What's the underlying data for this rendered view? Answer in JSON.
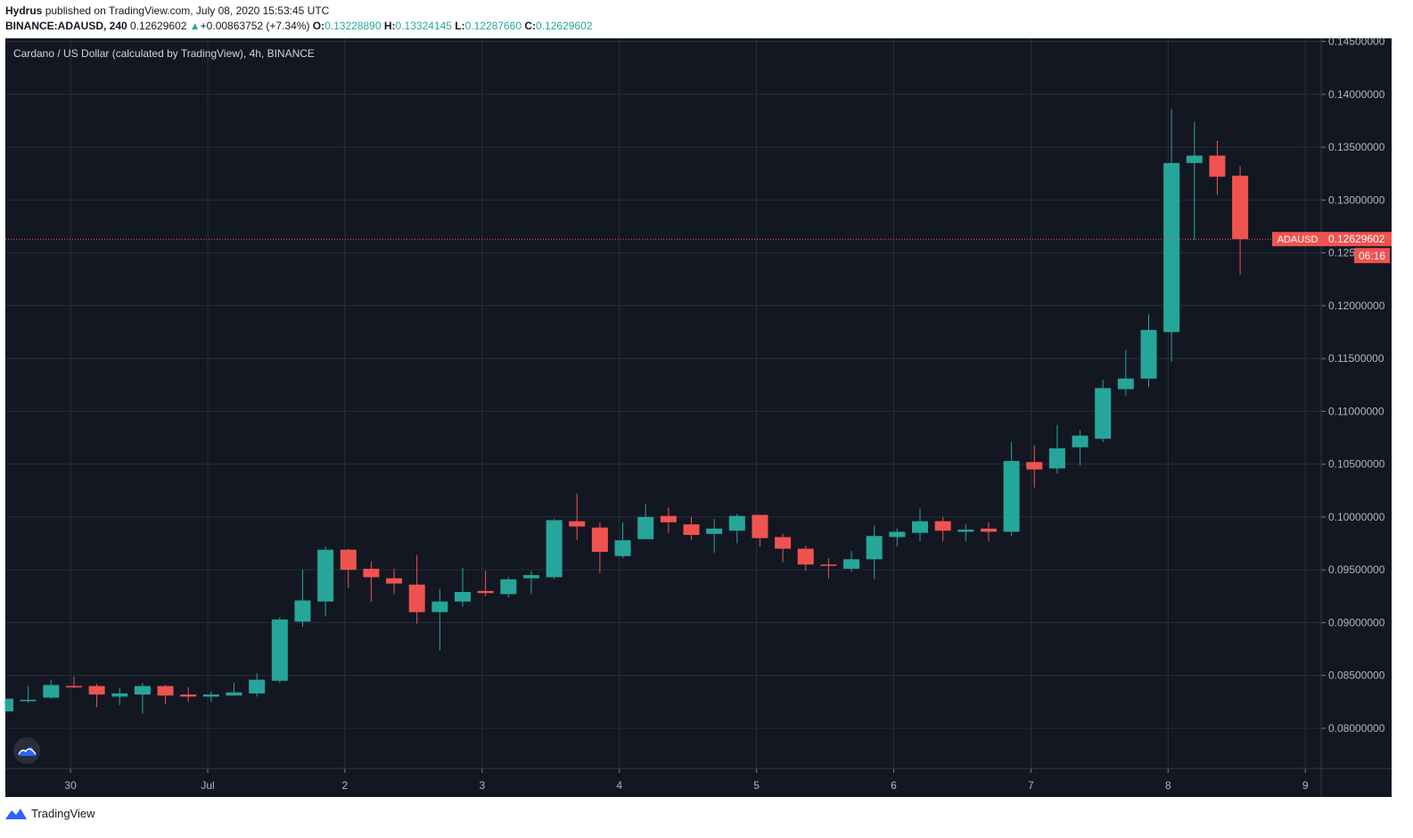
{
  "header": {
    "author": "Hydrus",
    "published_text": "published on TradingView.com, July 08, 2020 15:53:45 UTC",
    "symbol_line": "BINANCE:ADAUSD, 240",
    "last_price": "0.12629602",
    "change_arrow": "▲",
    "change": "+0.00863752 (+7.34%)",
    "o_label": "O:",
    "o_value": "0.13228890",
    "h_label": "H:",
    "h_value": "0.13324145",
    "l_label": "L:",
    "l_value": "0.12287660",
    "c_label": "C:",
    "c_value": "0.12629602"
  },
  "footer": {
    "brand": "TradingView",
    "icon": "tradingview-logo-icon"
  },
  "chart_data": {
    "type": "candlestick",
    "title": "Cardano / US Dollar (calculated by TradingView), 4h, BINANCE",
    "x_tick_labels": [
      "30",
      "Jul",
      "2",
      "3",
      "4",
      "5",
      "6",
      "7",
      "8",
      "9"
    ],
    "y_tick_labels": [
      "0.08000000",
      "0.08500000",
      "0.09000000",
      "0.09500000",
      "0.10000000",
      "0.10500000",
      "0.11000000",
      "0.11500000",
      "0.12000000",
      "0.12500000",
      "0.13000000",
      "0.13500000",
      "0.14000000",
      "0.14500000"
    ],
    "ylim": [
      0.0762,
      0.1453
    ],
    "grid": true,
    "colors": {
      "background": "#131722",
      "up": "#26a69a",
      "down": "#ef5350",
      "grid": "#2a2e39",
      "axis_text": "#b2b5be",
      "price_line": "#ef5350"
    },
    "candles": [
      {
        "o": 0.0816,
        "h": 0.0828,
        "l": 0.0816,
        "c": 0.0828
      },
      {
        "o": 0.0826,
        "h": 0.084,
        "l": 0.0824,
        "c": 0.0827
      },
      {
        "o": 0.0829,
        "h": 0.0846,
        "l": 0.0828,
        "c": 0.0841
      },
      {
        "o": 0.084,
        "h": 0.0849,
        "l": 0.0838,
        "c": 0.0839
      },
      {
        "o": 0.084,
        "h": 0.0842,
        "l": 0.082,
        "c": 0.0832
      },
      {
        "o": 0.083,
        "h": 0.0838,
        "l": 0.0822,
        "c": 0.0833
      },
      {
        "o": 0.0832,
        "h": 0.0843,
        "l": 0.0814,
        "c": 0.084
      },
      {
        "o": 0.084,
        "h": 0.0841,
        "l": 0.0823,
        "c": 0.0831
      },
      {
        "o": 0.0832,
        "h": 0.0839,
        "l": 0.0825,
        "c": 0.083
      },
      {
        "o": 0.083,
        "h": 0.0835,
        "l": 0.0825,
        "c": 0.0832
      },
      {
        "o": 0.0831,
        "h": 0.0843,
        "l": 0.0831,
        "c": 0.0834
      },
      {
        "o": 0.0833,
        "h": 0.0852,
        "l": 0.083,
        "c": 0.0846
      },
      {
        "o": 0.0845,
        "h": 0.0905,
        "l": 0.0843,
        "c": 0.0903
      },
      {
        "o": 0.0901,
        "h": 0.095,
        "l": 0.0896,
        "c": 0.0921
      },
      {
        "o": 0.092,
        "h": 0.0972,
        "l": 0.0906,
        "c": 0.0969
      },
      {
        "o": 0.0969,
        "h": 0.097,
        "l": 0.0933,
        "c": 0.095
      },
      {
        "o": 0.0951,
        "h": 0.0958,
        "l": 0.092,
        "c": 0.0943
      },
      {
        "o": 0.0942,
        "h": 0.0951,
        "l": 0.0927,
        "c": 0.0937
      },
      {
        "o": 0.0936,
        "h": 0.0964,
        "l": 0.0899,
        "c": 0.091
      },
      {
        "o": 0.091,
        "h": 0.0932,
        "l": 0.0874,
        "c": 0.092
      },
      {
        "o": 0.092,
        "h": 0.0952,
        "l": 0.0915,
        "c": 0.0929
      },
      {
        "o": 0.093,
        "h": 0.0949,
        "l": 0.0925,
        "c": 0.0928
      },
      {
        "o": 0.0927,
        "h": 0.0943,
        "l": 0.0924,
        "c": 0.0941
      },
      {
        "o": 0.0942,
        "h": 0.0949,
        "l": 0.0927,
        "c": 0.0945
      },
      {
        "o": 0.0943,
        "h": 0.0998,
        "l": 0.0941,
        "c": 0.0997
      },
      {
        "o": 0.0996,
        "h": 0.1022,
        "l": 0.0978,
        "c": 0.0991
      },
      {
        "o": 0.099,
        "h": 0.0995,
        "l": 0.0947,
        "c": 0.0967
      },
      {
        "o": 0.0963,
        "h": 0.0995,
        "l": 0.0961,
        "c": 0.0978
      },
      {
        "o": 0.0979,
        "h": 0.1012,
        "l": 0.0979,
        "c": 0.1
      },
      {
        "o": 0.1001,
        "h": 0.1009,
        "l": 0.0985,
        "c": 0.0995
      },
      {
        "o": 0.0993,
        "h": 0.1,
        "l": 0.0978,
        "c": 0.0983
      },
      {
        "o": 0.0984,
        "h": 0.0998,
        "l": 0.0966,
        "c": 0.0989
      },
      {
        "o": 0.0987,
        "h": 0.1003,
        "l": 0.0975,
        "c": 0.1001
      },
      {
        "o": 0.1002,
        "h": 0.1002,
        "l": 0.0972,
        "c": 0.098
      },
      {
        "o": 0.0981,
        "h": 0.0984,
        "l": 0.0957,
        "c": 0.097
      },
      {
        "o": 0.097,
        "h": 0.0973,
        "l": 0.0949,
        "c": 0.0955
      },
      {
        "o": 0.0955,
        "h": 0.0961,
        "l": 0.0942,
        "c": 0.0954
      },
      {
        "o": 0.0951,
        "h": 0.0968,
        "l": 0.0948,
        "c": 0.096
      },
      {
        "o": 0.096,
        "h": 0.0992,
        "l": 0.0941,
        "c": 0.0982
      },
      {
        "o": 0.0981,
        "h": 0.0989,
        "l": 0.0972,
        "c": 0.0986
      },
      {
        "o": 0.0985,
        "h": 0.1008,
        "l": 0.0977,
        "c": 0.0996
      },
      {
        "o": 0.0996,
        "h": 0.1,
        "l": 0.0977,
        "c": 0.0987
      },
      {
        "o": 0.0986,
        "h": 0.0993,
        "l": 0.0977,
        "c": 0.0988
      },
      {
        "o": 0.0989,
        "h": 0.0995,
        "l": 0.0977,
        "c": 0.0986
      },
      {
        "o": 0.0986,
        "h": 0.1071,
        "l": 0.0982,
        "c": 0.1053
      },
      {
        "o": 0.1052,
        "h": 0.1068,
        "l": 0.1028,
        "c": 0.1045
      },
      {
        "o": 0.1046,
        "h": 0.1087,
        "l": 0.1041,
        "c": 0.1065
      },
      {
        "o": 0.1066,
        "h": 0.1082,
        "l": 0.1049,
        "c": 0.1077
      },
      {
        "o": 0.1074,
        "h": 0.113,
        "l": 0.1071,
        "c": 0.1122
      },
      {
        "o": 0.1121,
        "h": 0.1158,
        "l": 0.1115,
        "c": 0.1131
      },
      {
        "o": 0.1131,
        "h": 0.1192,
        "l": 0.1123,
        "c": 0.1177
      },
      {
        "o": 0.1175,
        "h": 0.1386,
        "l": 0.1147,
        "c": 0.1335
      },
      {
        "o": 0.1335,
        "h": 0.1374,
        "l": 0.1262,
        "c": 0.1342
      },
      {
        "o": 0.1342,
        "h": 0.1356,
        "l": 0.1305,
        "c": 0.1322
      },
      {
        "o": 0.1323,
        "h": 0.1332,
        "l": 0.1229,
        "c": 0.1263
      }
    ],
    "last_price_label": {
      "symbol": "ADAUSD",
      "value": "0.12629602",
      "countdown": "06:16"
    }
  }
}
